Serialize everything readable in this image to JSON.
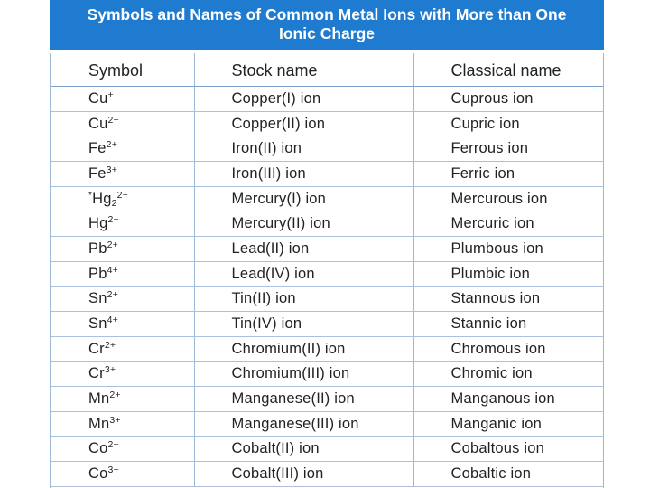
{
  "title": {
    "line1": "Symbols and Names of Common Metal Ions with More than One",
    "line2": "Ionic Charge"
  },
  "columns": [
    "Symbol",
    "Stock name",
    "Classical name"
  ],
  "rows": [
    {
      "element": "Cu",
      "note": "",
      "sub": "",
      "charge": "+",
      "stock": "Copper(I) ion",
      "classical": "Cuprous ion"
    },
    {
      "element": "Cu",
      "note": "",
      "sub": "",
      "charge": "2+",
      "stock": "Copper(II) ion",
      "classical": "Cupric ion"
    },
    {
      "element": "Fe",
      "note": "",
      "sub": "",
      "charge": "2+",
      "stock": "Iron(II) ion",
      "classical": "Ferrous ion"
    },
    {
      "element": "Fe",
      "note": "",
      "sub": "",
      "charge": "3+",
      "stock": "Iron(III) ion",
      "classical": "Ferric ion"
    },
    {
      "element": "Hg",
      "note": "*",
      "sub": "2",
      "charge": "2+",
      "stock": "Mercury(I) ion",
      "classical": "Mercurous ion"
    },
    {
      "element": "Hg",
      "note": "",
      "sub": "",
      "charge": "2+",
      "stock": "Mercury(II) ion",
      "classical": "Mercuric ion"
    },
    {
      "element": "Pb",
      "note": "",
      "sub": "",
      "charge": "2+",
      "stock": "Lead(II) ion",
      "classical": "Plumbous ion"
    },
    {
      "element": "Pb",
      "note": "",
      "sub": "",
      "charge": "4+",
      "stock": "Lead(IV) ion",
      "classical": "Plumbic ion"
    },
    {
      "element": "Sn",
      "note": "",
      "sub": "",
      "charge": "2+",
      "stock": "Tin(II) ion",
      "classical": "Stannous ion"
    },
    {
      "element": "Sn",
      "note": "",
      "sub": "",
      "charge": "4+",
      "stock": "Tin(IV) ion",
      "classical": "Stannic ion"
    },
    {
      "element": "Cr",
      "note": "",
      "sub": "",
      "charge": "2+",
      "stock": "Chromium(II) ion",
      "classical": "Chromous ion"
    },
    {
      "element": "Cr",
      "note": "",
      "sub": "",
      "charge": "3+",
      "stock": "Chromium(III) ion",
      "classical": "Chromic ion"
    },
    {
      "element": "Mn",
      "note": "",
      "sub": "",
      "charge": "2+",
      "stock": "Manganese(II) ion",
      "classical": "Manganous ion"
    },
    {
      "element": "Mn",
      "note": "",
      "sub": "",
      "charge": "3+",
      "stock": "Manganese(III) ion",
      "classical": "Manganic ion"
    },
    {
      "element": "Co",
      "note": "",
      "sub": "",
      "charge": "2+",
      "stock": "Cobalt(II) ion",
      "classical": "Cobaltous ion"
    },
    {
      "element": "Co",
      "note": "",
      "sub": "",
      "charge": "3+",
      "stock": "Cobalt(III) ion",
      "classical": "Cobaltic ion"
    }
  ],
  "colors": {
    "banner": "#1e7bd0",
    "rule": "#a9c1dd"
  }
}
